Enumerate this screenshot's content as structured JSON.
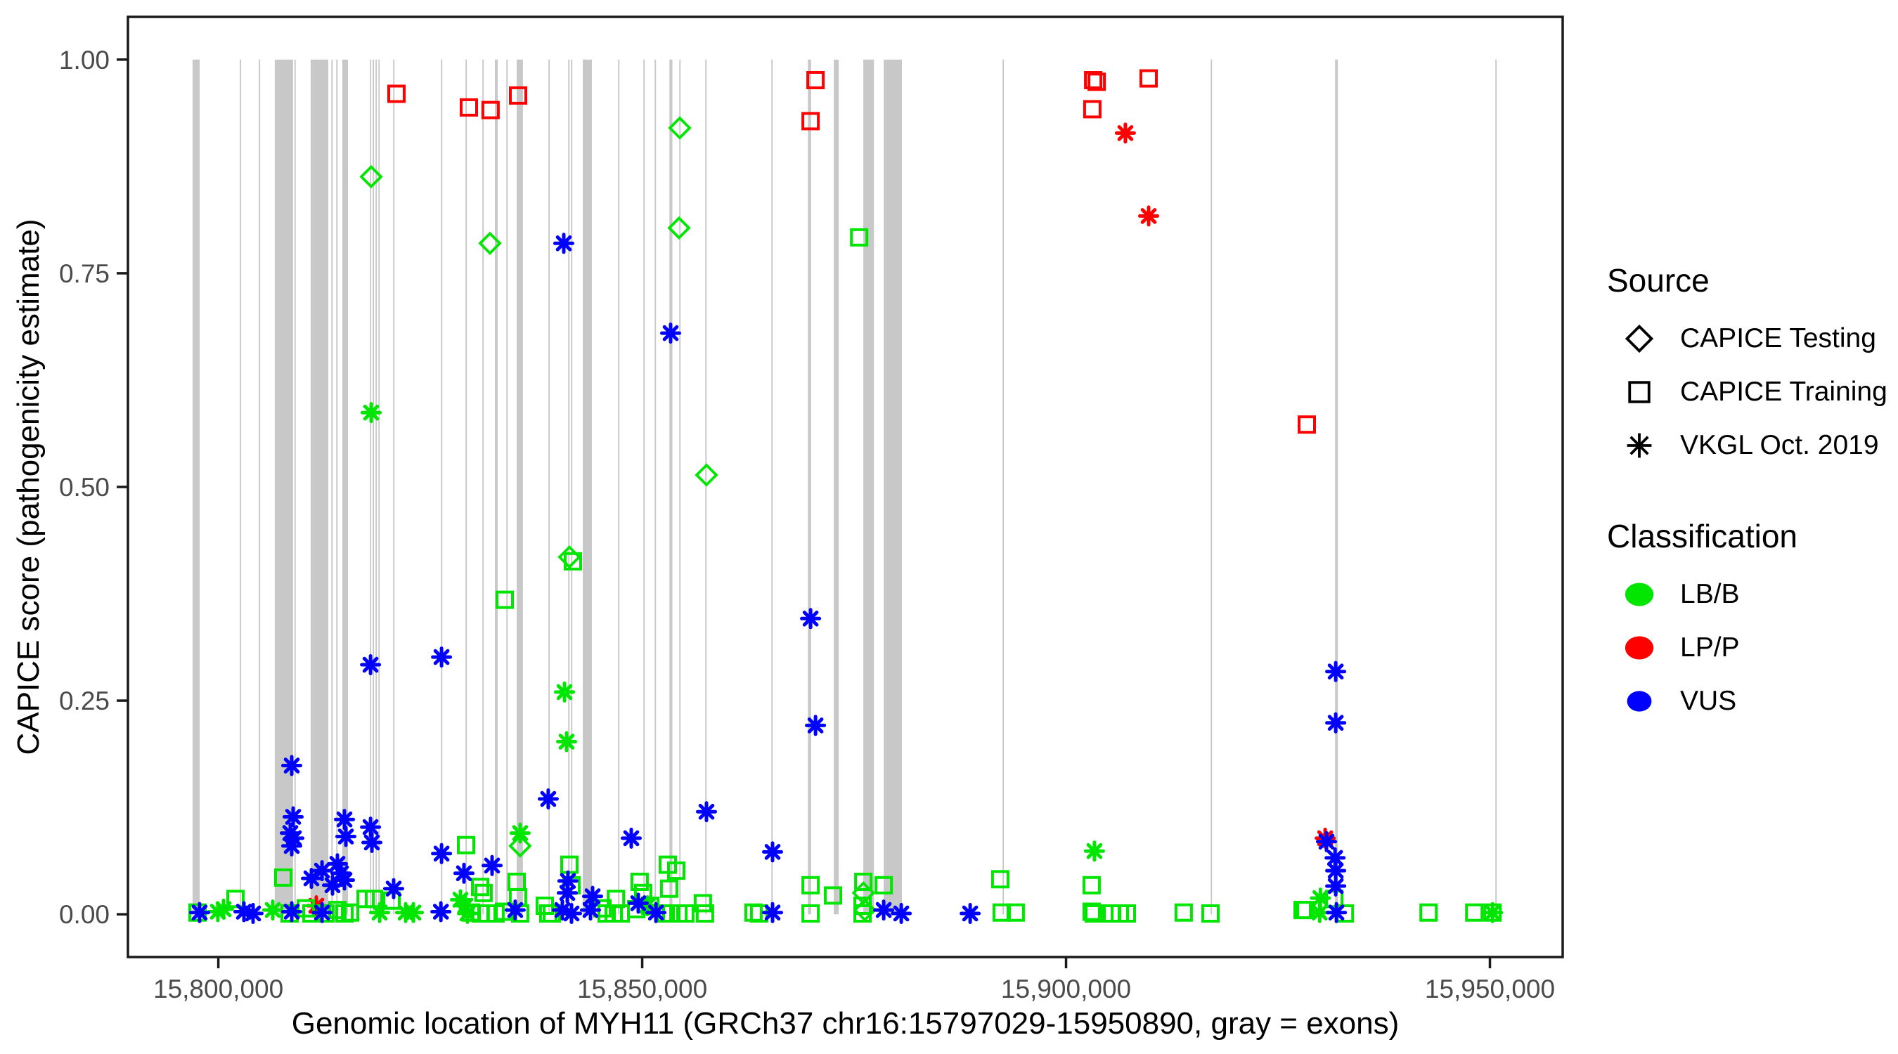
{
  "chart_data": {
    "type": "scatter",
    "title": "",
    "xlabel": "Genomic location of MYH11 (GRCh37 chr16:15797029-15950890, gray = exons)",
    "ylabel": "CAPICE score (pathogenicity estimate)",
    "xlim": [
      15789336,
      15958583
    ],
    "ylim": [
      -0.05,
      1.05
    ],
    "grid": false,
    "gene_region": {
      "chrom": "chr16",
      "start": 15797029,
      "end": 15950890,
      "gray_note": "gray = exons"
    },
    "x_ticks": [
      {
        "value": 15800000,
        "label": "15,800,000"
      },
      {
        "value": 15850000,
        "label": "15,850,000"
      },
      {
        "value": 15900000,
        "label": "15,900,000"
      },
      {
        "value": 15950000,
        "label": "15,950,000"
      }
    ],
    "y_ticks": [
      {
        "value": 0.0,
        "label": "0.00"
      },
      {
        "value": 0.25,
        "label": "0.25"
      },
      {
        "value": 0.5,
        "label": "0.50"
      },
      {
        "value": 0.75,
        "label": "0.75"
      },
      {
        "value": 1.0,
        "label": "1.00"
      }
    ],
    "exon_color": "#c8c8c8",
    "colors": {
      "LB/B": "#00e600",
      "LP/P": "#ff0000",
      "VUS": "#0000ff"
    },
    "shapes": {
      "CAPICE Testing": "diamond",
      "CAPICE Training": "square",
      "VKGL Oct. 2019": "asterisk"
    },
    "exons": [
      [
        15796960,
        15797800
      ],
      [
        15802540,
        15802700
      ],
      [
        15804780,
        15804940
      ],
      [
        15806660,
        15808820
      ],
      [
        15808970,
        15809130
      ],
      [
        15810890,
        15812970
      ],
      [
        15813330,
        15813490
      ],
      [
        15813910,
        15814070
      ],
      [
        15814630,
        15815290
      ],
      [
        15817890,
        15818030
      ],
      [
        15818220,
        15818360
      ],
      [
        15818550,
        15818690
      ],
      [
        15818880,
        15819020
      ],
      [
        15820620,
        15820780
      ],
      [
        15826260,
        15826420
      ],
      [
        15829160,
        15829320
      ],
      [
        15831150,
        15831310
      ],
      [
        15832620,
        15832950
      ],
      [
        15833970,
        15834130
      ],
      [
        15835190,
        15835930
      ],
      [
        15838940,
        15839100
      ],
      [
        15841270,
        15841430
      ],
      [
        15841600,
        15841760
      ],
      [
        15842990,
        15844070
      ],
      [
        15847160,
        15847320
      ],
      [
        15850140,
        15850300
      ],
      [
        15851470,
        15851630
      ],
      [
        15853210,
        15853560
      ],
      [
        15854370,
        15854530
      ],
      [
        15857440,
        15857600
      ],
      [
        15865240,
        15865400
      ],
      [
        15869550,
        15869920
      ],
      [
        15872600,
        15873180
      ],
      [
        15876080,
        15877330
      ],
      [
        15878490,
        15880640
      ],
      [
        15892510,
        15892670
      ],
      [
        15917060,
        15917220
      ],
      [
        15931730,
        15932060
      ],
      [
        15950640,
        15950800
      ]
    ],
    "points": [
      [
        15821010,
        0.96,
        "square",
        "LP/P"
      ],
      [
        15829550,
        0.944,
        "square",
        "LP/P"
      ],
      [
        15832120,
        0.941,
        "square",
        "LP/P"
      ],
      [
        15835360,
        0.958,
        "square",
        "LP/P"
      ],
      [
        15870440,
        0.976,
        "square",
        "LP/P"
      ],
      [
        15869860,
        0.928,
        "square",
        "LP/P"
      ],
      [
        15903200,
        0.976,
        "square",
        "LP/P"
      ],
      [
        15903610,
        0.974,
        "square",
        "LP/P"
      ],
      [
        15903100,
        0.942,
        "square",
        "LP/P"
      ],
      [
        15909740,
        0.978,
        "square",
        "LP/P"
      ],
      [
        15928400,
        0.573,
        "square",
        "LP/P"
      ],
      [
        15907000,
        0.914,
        "asterisk",
        "LP/P"
      ],
      [
        15909740,
        0.817,
        "asterisk",
        "LP/P"
      ],
      [
        15930560,
        0.089,
        "asterisk",
        "LP/P"
      ],
      [
        15811560,
        0.01,
        "asterisk",
        "LP/P"
      ],
      [
        15818030,
        0.863,
        "diamond",
        "LB/B"
      ],
      [
        15832040,
        0.785,
        "diamond",
        "LB/B"
      ],
      [
        15854430,
        0.92,
        "diamond",
        "LB/B"
      ],
      [
        15854350,
        0.803,
        "diamond",
        "LB/B"
      ],
      [
        15857580,
        0.514,
        "diamond",
        "LB/B"
      ],
      [
        15841410,
        0.418,
        "diamond",
        "LB/B"
      ],
      [
        15835600,
        0.08,
        "diamond",
        "LB/B"
      ],
      [
        15876100,
        0.025,
        "diamond",
        "LB/B"
      ],
      [
        15876260,
        0.005,
        "diamond",
        "LB/B"
      ],
      [
        15875590,
        0.792,
        "square",
        "LB/B"
      ],
      [
        15833780,
        0.368,
        "square",
        "LB/B"
      ],
      [
        15841830,
        0.413,
        "square",
        "LB/B"
      ],
      [
        15829220,
        0.081,
        "square",
        "LB/B"
      ],
      [
        15841410,
        0.058,
        "square",
        "LB/B"
      ],
      [
        15841660,
        0.034,
        "square",
        "LB/B"
      ],
      [
        15835190,
        0.038,
        "square",
        "LB/B"
      ],
      [
        15835350,
        0.02,
        "square",
        "LB/B"
      ],
      [
        15853020,
        0.058,
        "square",
        "LB/B"
      ],
      [
        15854020,
        0.051,
        "square",
        "LB/B"
      ],
      [
        15853180,
        0.03,
        "square",
        "LB/B"
      ],
      [
        15830880,
        0.032,
        "square",
        "LB/B"
      ],
      [
        15831290,
        0.025,
        "square",
        "LB/B"
      ],
      [
        15846900,
        0.018,
        "square",
        "LB/B"
      ],
      [
        15849700,
        0.038,
        "square",
        "LB/B"
      ],
      [
        15850110,
        0.025,
        "square",
        "LB/B"
      ],
      [
        15807660,
        0.043,
        "square",
        "LB/B"
      ],
      [
        15869860,
        0.034,
        "square",
        "LB/B"
      ],
      [
        15872510,
        0.022,
        "square",
        "LB/B"
      ],
      [
        15876080,
        0.038,
        "square",
        "LB/B"
      ],
      [
        15875990,
        0.01,
        "square",
        "LB/B"
      ],
      [
        15878490,
        0.034,
        "square",
        "LB/B"
      ],
      [
        15892240,
        0.041,
        "square",
        "LB/B"
      ],
      [
        15903020,
        0.034,
        "square",
        "LB/B"
      ],
      [
        15931640,
        0.018,
        "square",
        "LB/B"
      ],
      [
        15817370,
        0.018,
        "square",
        "LB/B"
      ],
      [
        15818360,
        0.018,
        "square",
        "LB/B"
      ],
      [
        15820430,
        0.016,
        "square",
        "LB/B"
      ],
      [
        15857160,
        0.013,
        "square",
        "LB/B"
      ],
      [
        15797540,
        0.002,
        "square",
        "LB/B"
      ],
      [
        15802020,
        0.018,
        "square",
        "LB/B"
      ],
      [
        15808410,
        0.001,
        "square",
        "LB/B"
      ],
      [
        15810320,
        0.007,
        "square",
        "LB/B"
      ],
      [
        15810980,
        0.001,
        "square",
        "LB/B"
      ],
      [
        15812640,
        0.001,
        "square",
        "LB/B"
      ],
      [
        15814050,
        0.005,
        "square",
        "LB/B"
      ],
      [
        15814880,
        0.001,
        "square",
        "LB/B"
      ],
      [
        15815540,
        0.002,
        "square",
        "LB/B"
      ],
      [
        15829800,
        0.002,
        "square",
        "LB/B"
      ],
      [
        15830950,
        0.001,
        "square",
        "LB/B"
      ],
      [
        15831710,
        0.001,
        "square",
        "LB/B"
      ],
      [
        15832700,
        0.001,
        "square",
        "LB/B"
      ],
      [
        15833700,
        0.003,
        "square",
        "LB/B"
      ],
      [
        15835600,
        0.001,
        "square",
        "LB/B"
      ],
      [
        15838510,
        0.01,
        "square",
        "LB/B"
      ],
      [
        15838920,
        0.001,
        "square",
        "LB/B"
      ],
      [
        15839340,
        0.001,
        "square",
        "LB/B"
      ],
      [
        15845310,
        0.007,
        "square",
        "LB/B"
      ],
      [
        15845810,
        0.001,
        "square",
        "LB/B"
      ],
      [
        15846640,
        0.001,
        "square",
        "LB/B"
      ],
      [
        15847470,
        0.001,
        "square",
        "LB/B"
      ],
      [
        15849290,
        0.006,
        "square",
        "LB/B"
      ],
      [
        15850950,
        0.01,
        "square",
        "LB/B"
      ],
      [
        15852770,
        0.001,
        "square",
        "LB/B"
      ],
      [
        15853440,
        0.001,
        "square",
        "LB/B"
      ],
      [
        15854270,
        0.001,
        "square",
        "LB/B"
      ],
      [
        15855090,
        0.001,
        "square",
        "LB/B"
      ],
      [
        15857410,
        0.001,
        "square",
        "LB/B"
      ],
      [
        15863130,
        0.002,
        "square",
        "LB/B"
      ],
      [
        15863790,
        0.001,
        "square",
        "LB/B"
      ],
      [
        15869860,
        0.001,
        "square",
        "LB/B"
      ],
      [
        15875990,
        0.001,
        "square",
        "LB/B"
      ],
      [
        15892400,
        0.002,
        "square",
        "LB/B"
      ],
      [
        15894060,
        0.002,
        "square",
        "LB/B"
      ],
      [
        15903020,
        0.003,
        "square",
        "LB/B"
      ],
      [
        15903270,
        0.001,
        "square",
        "LB/B"
      ],
      [
        15905430,
        0.001,
        "square",
        "LB/B"
      ],
      [
        15906340,
        0.001,
        "square",
        "LB/B"
      ],
      [
        15907170,
        0.001,
        "square",
        "LB/B"
      ],
      [
        15913880,
        0.002,
        "square",
        "LB/B"
      ],
      [
        15917040,
        0.001,
        "square",
        "LB/B"
      ],
      [
        15927900,
        0.005,
        "square",
        "LB/B"
      ],
      [
        15928230,
        0.005,
        "square",
        "LB/B"
      ],
      [
        15932890,
        0.001,
        "square",
        "LB/B"
      ],
      [
        15942760,
        0.002,
        "square",
        "LB/B"
      ],
      [
        15948150,
        0.002,
        "square",
        "LB/B"
      ],
      [
        15950310,
        0.002,
        "square",
        "LB/B"
      ],
      [
        15818030,
        0.587,
        "asterisk",
        "LB/B"
      ],
      [
        15840830,
        0.26,
        "asterisk",
        "LB/B"
      ],
      [
        15841080,
        0.202,
        "asterisk",
        "LB/B"
      ],
      [
        15835600,
        0.095,
        "asterisk",
        "LB/B"
      ],
      [
        15903350,
        0.074,
        "asterisk",
        "LB/B"
      ],
      [
        15930000,
        0.019,
        "asterisk",
        "LB/B"
      ],
      [
        15828560,
        0.017,
        "asterisk",
        "LB/B"
      ],
      [
        15829140,
        0.01,
        "asterisk",
        "LB/B"
      ],
      [
        15799940,
        0.003,
        "asterisk",
        "LB/B"
      ],
      [
        15800610,
        0.006,
        "asterisk",
        "LB/B"
      ],
      [
        15806420,
        0.005,
        "asterisk",
        "LB/B"
      ],
      [
        15819020,
        0.002,
        "asterisk",
        "LB/B"
      ],
      [
        15822090,
        0.002,
        "asterisk",
        "LB/B"
      ],
      [
        15823000,
        0.002,
        "asterisk",
        "LB/B"
      ],
      [
        15829390,
        0.001,
        "asterisk",
        "LB/B"
      ],
      [
        15850620,
        0.01,
        "asterisk",
        "LB/B"
      ],
      [
        15929920,
        0.002,
        "asterisk",
        "LB/B"
      ],
      [
        15950310,
        0.002,
        "asterisk",
        "LB/B"
      ],
      [
        15840750,
        0.785,
        "asterisk",
        "VUS"
      ],
      [
        15853350,
        0.68,
        "asterisk",
        "VUS"
      ],
      [
        15817950,
        0.292,
        "asterisk",
        "VUS"
      ],
      [
        15826330,
        0.301,
        "asterisk",
        "VUS"
      ],
      [
        15869860,
        0.346,
        "asterisk",
        "VUS"
      ],
      [
        15870440,
        0.221,
        "asterisk",
        "VUS"
      ],
      [
        15931810,
        0.284,
        "asterisk",
        "VUS"
      ],
      [
        15931810,
        0.224,
        "asterisk",
        "VUS"
      ],
      [
        15808660,
        0.174,
        "asterisk",
        "VUS"
      ],
      [
        15808820,
        0.114,
        "asterisk",
        "VUS"
      ],
      [
        15808490,
        0.095,
        "asterisk",
        "VUS"
      ],
      [
        15808910,
        0.089,
        "asterisk",
        "VUS"
      ],
      [
        15808660,
        0.08,
        "asterisk",
        "VUS"
      ],
      [
        15814880,
        0.111,
        "asterisk",
        "VUS"
      ],
      [
        15815040,
        0.091,
        "asterisk",
        "VUS"
      ],
      [
        15817950,
        0.102,
        "asterisk",
        "VUS"
      ],
      [
        15818110,
        0.084,
        "asterisk",
        "VUS"
      ],
      [
        15820680,
        0.03,
        "asterisk",
        "VUS"
      ],
      [
        15838920,
        0.135,
        "asterisk",
        "VUS"
      ],
      [
        15857580,
        0.12,
        "asterisk",
        "VUS"
      ],
      [
        15826330,
        0.071,
        "asterisk",
        "VUS"
      ],
      [
        15828970,
        0.048,
        "asterisk",
        "VUS"
      ],
      [
        15832290,
        0.057,
        "asterisk",
        "VUS"
      ],
      [
        15848710,
        0.089,
        "asterisk",
        "VUS"
      ],
      [
        15865380,
        0.073,
        "asterisk",
        "VUS"
      ],
      [
        15844150,
        0.021,
        "asterisk",
        "VUS"
      ],
      [
        15841240,
        0.039,
        "asterisk",
        "VUS"
      ],
      [
        15841160,
        0.025,
        "asterisk",
        "VUS"
      ],
      [
        15930720,
        0.085,
        "asterisk",
        "VUS"
      ],
      [
        15931730,
        0.066,
        "asterisk",
        "VUS"
      ],
      [
        15931810,
        0.051,
        "asterisk",
        "VUS"
      ],
      [
        15931810,
        0.033,
        "asterisk",
        "VUS"
      ],
      [
        15810980,
        0.042,
        "asterisk",
        "VUS"
      ],
      [
        15812230,
        0.051,
        "asterisk",
        "VUS"
      ],
      [
        15814050,
        0.059,
        "asterisk",
        "VUS"
      ],
      [
        15814460,
        0.048,
        "asterisk",
        "VUS"
      ],
      [
        15814880,
        0.04,
        "asterisk",
        "VUS"
      ],
      [
        15813470,
        0.034,
        "asterisk",
        "VUS"
      ],
      [
        15849540,
        0.013,
        "asterisk",
        "VUS"
      ],
      [
        15797790,
        0.002,
        "asterisk",
        "VUS"
      ],
      [
        15803020,
        0.003,
        "asterisk",
        "VUS"
      ],
      [
        15804100,
        0.001,
        "asterisk",
        "VUS"
      ],
      [
        15808660,
        0.003,
        "asterisk",
        "VUS"
      ],
      [
        15812230,
        0.002,
        "asterisk",
        "VUS"
      ],
      [
        15826250,
        0.003,
        "asterisk",
        "VUS"
      ],
      [
        15835020,
        0.005,
        "asterisk",
        "VUS"
      ],
      [
        15840580,
        0.005,
        "asterisk",
        "VUS"
      ],
      [
        15841660,
        0.001,
        "asterisk",
        "VUS"
      ],
      [
        15843900,
        0.005,
        "asterisk",
        "VUS"
      ],
      [
        15851620,
        0.002,
        "asterisk",
        "VUS"
      ],
      [
        15865380,
        0.002,
        "asterisk",
        "VUS"
      ],
      [
        15878490,
        0.005,
        "asterisk",
        "VUS"
      ],
      [
        15880560,
        0.001,
        "asterisk",
        "VUS"
      ],
      [
        15888690,
        0.001,
        "asterisk",
        "VUS"
      ],
      [
        15931890,
        0.002,
        "asterisk",
        "VUS"
      ]
    ]
  },
  "legend": {
    "source_title": "Source",
    "source_items": [
      {
        "label": "CAPICE Testing",
        "shape": "diamond"
      },
      {
        "label": "CAPICE Training",
        "shape": "square"
      },
      {
        "label": "VKGL Oct. 2019",
        "shape": "asterisk"
      }
    ],
    "classification_title": "Classification",
    "classification_items": [
      {
        "label": "LB/B",
        "color": "#00e600"
      },
      {
        "label": "LP/P",
        "color": "#ff0000"
      },
      {
        "label": "VUS",
        "color": "#0000ff"
      }
    ]
  }
}
